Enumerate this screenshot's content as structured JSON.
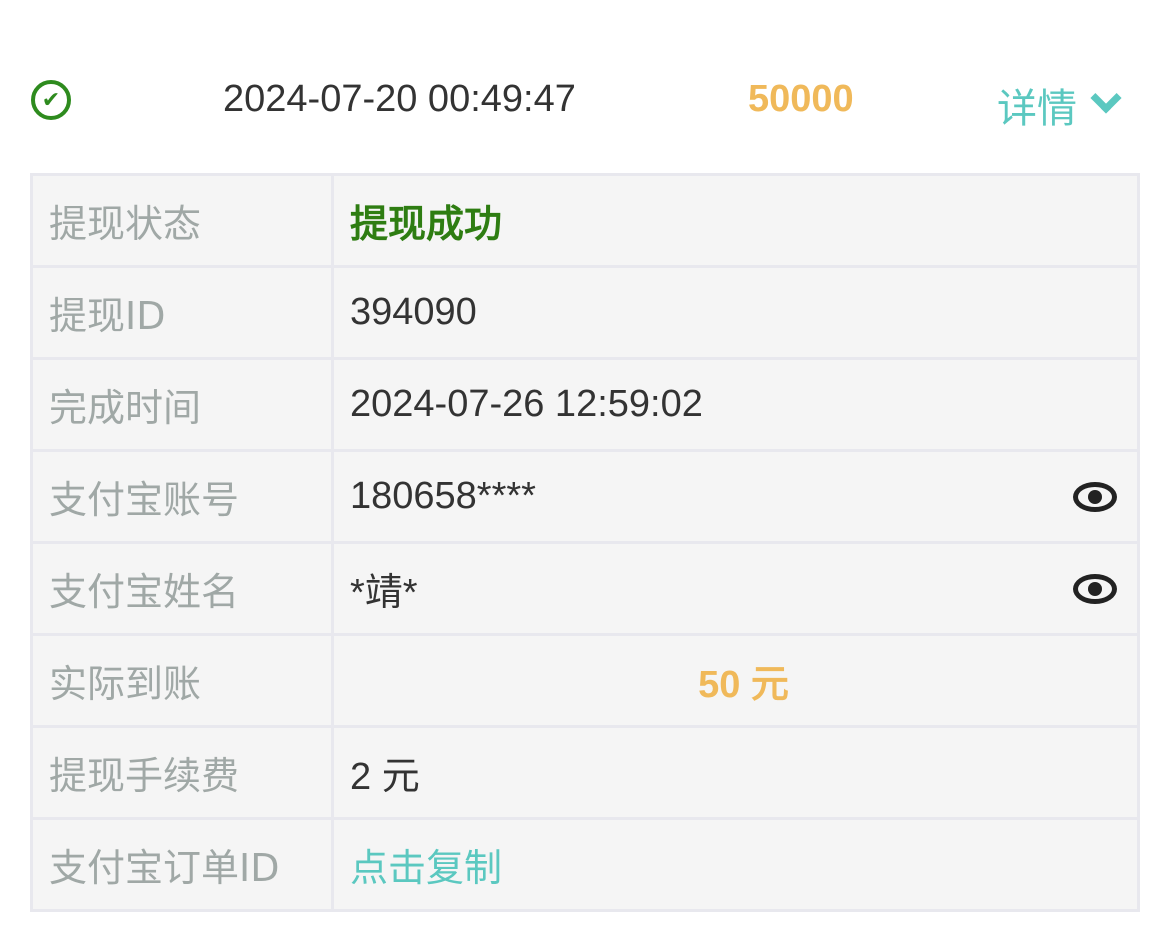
{
  "record": {
    "status_icon": "check-circle-icon",
    "time": "2024-07-20 00:49:47",
    "amount": "50000",
    "detail_label": "详情",
    "detail_icon": "chevron-down-icon"
  },
  "details": {
    "status": {
      "label": "提现状态",
      "value": "提现成功"
    },
    "id": {
      "label": "提现ID",
      "value": "394090"
    },
    "completed": {
      "label": "完成时间",
      "value": "2024-07-26 12:59:02"
    },
    "account": {
      "label": "支付宝账号",
      "value": "180658****",
      "icon": "eye-icon"
    },
    "name": {
      "label": "支付宝姓名",
      "value": "*靖*",
      "icon": "eye-icon"
    },
    "received": {
      "label": "实际到账",
      "value": "50 元"
    },
    "fee": {
      "label": "提现手续费",
      "value": "2 元"
    },
    "order": {
      "label": "支付宝订单ID",
      "value": "点击复制"
    }
  },
  "colors": {
    "success": "#2e7d12",
    "amount": "#f0b95a",
    "link": "#5bc8c0"
  }
}
